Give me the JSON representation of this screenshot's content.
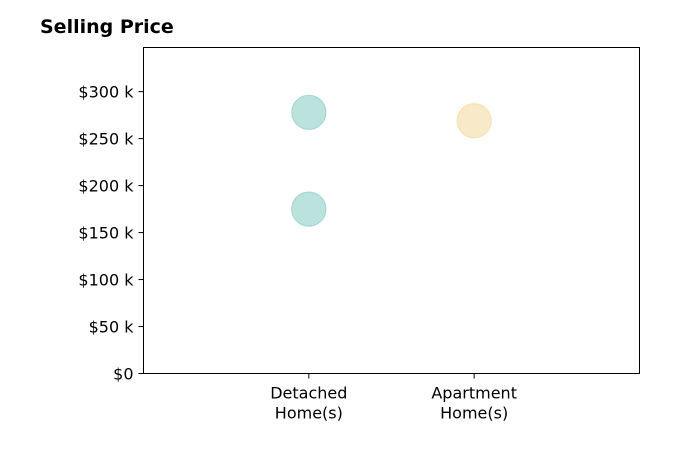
{
  "chart_data": {
    "type": "scatter",
    "title": "Selling Price",
    "xlabel": "",
    "ylabel": "",
    "categories": [
      [
        "Detached",
        "Home(s)"
      ],
      [
        "Apartment",
        "Home(s)"
      ]
    ],
    "ylim": [
      0,
      347000
    ],
    "y_ticks": [
      0,
      50000,
      100000,
      150000,
      200000,
      250000,
      300000
    ],
    "y_tick_labels": [
      "$0",
      "$50 k",
      "$100 k",
      "$150 k",
      "$200 k",
      "$250 k",
      "$300 k"
    ],
    "grid": false,
    "legend": "none",
    "points": [
      {
        "category": 0,
        "y": 278000,
        "color": "#a6d8d3"
      },
      {
        "category": 0,
        "y": 175000,
        "color": "#a6d8d3"
      },
      {
        "category": 1,
        "y": 269000,
        "color": "#f5e2b5"
      }
    ]
  }
}
